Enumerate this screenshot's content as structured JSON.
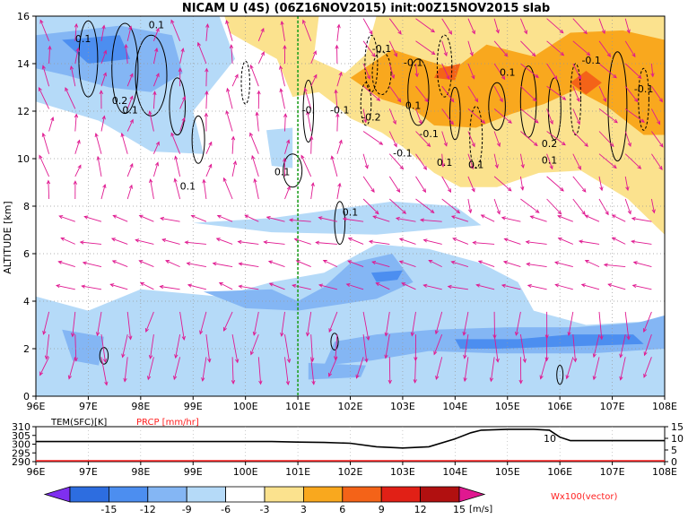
{
  "chart_data": [
    {
      "type": "heatmap",
      "title": "NICAM U (4S) (06Z16NOV2015) init:00Z15NOV2015 slab",
      "ylabel": "ALTITUDE [km]",
      "xlim": [
        96,
        108
      ],
      "ylim": [
        0,
        16
      ],
      "x_ticks": [
        "96E",
        "97E",
        "98E",
        "99E",
        "100E",
        "101E",
        "102E",
        "103E",
        "104E",
        "105E",
        "106E",
        "107E",
        "108E"
      ],
      "y_ticks": [
        "0",
        "2",
        "4",
        "6",
        "8",
        "10",
        "12",
        "14",
        "16"
      ],
      "grid": true,
      "marker_line_x": 101,
      "contour_labels": [
        {
          "text": "0.1",
          "x": 96.9,
          "y": 14.9
        },
        {
          "text": "0.1",
          "x": 98.3,
          "y": 15.5
        },
        {
          "text": "0.2",
          "x": 97.6,
          "y": 12.3
        },
        {
          "text": "0.1",
          "x": 97.8,
          "y": 11.9
        },
        {
          "text": "0.1",
          "x": 98.9,
          "y": 8.7
        },
        {
          "text": "0.1",
          "x": 100.7,
          "y": 9.3
        },
        {
          "text": "-0.",
          "x": 101.2,
          "y": 11.9
        },
        {
          "text": "-0.1",
          "x": 101.8,
          "y": 11.9
        },
        {
          "text": "-0.2",
          "x": 102.4,
          "y": 11.6
        },
        {
          "text": "-0.1",
          "x": 102.6,
          "y": 14.5
        },
        {
          "text": "-0.1",
          "x": 103.2,
          "y": 13.9
        },
        {
          "text": "0.1",
          "x": 103.2,
          "y": 12.1
        },
        {
          "text": "-0.1",
          "x": 103.5,
          "y": 10.9
        },
        {
          "text": "-0.1",
          "x": 103.0,
          "y": 10.1
        },
        {
          "text": "0.1",
          "x": 103.8,
          "y": 9.7
        },
        {
          "text": "0.1",
          "x": 104.4,
          "y": 9.6
        },
        {
          "text": "0.1",
          "x": 105.0,
          "y": 13.5
        },
        {
          "text": "0.2",
          "x": 105.8,
          "y": 10.5
        },
        {
          "text": "0.1",
          "x": 105.8,
          "y": 9.8
        },
        {
          "text": "-0.1",
          "x": 106.6,
          "y": 14.0
        },
        {
          "text": "-0.1",
          "x": 107.6,
          "y": 12.8
        },
        {
          "text": "0.1",
          "x": 102.0,
          "y": 7.6
        }
      ],
      "vector_label": "Wx100(vector)",
      "colors": {
        "neg15": "#7f2ff0",
        "neg12": "#2d6de0",
        "neg9": "#4c8ef0",
        "neg6": "#84b6f4",
        "neg3": "#b5daf8",
        "zero": "#ffffff",
        "pos3": "#fbe28e",
        "pos6": "#f9a81e",
        "pos9": "#f46318",
        "pos12": "#e12016",
        "pos15": "#b11010",
        "vector": "#e01890",
        "marker": "#22a022"
      }
    },
    {
      "type": "line",
      "legend": [
        {
          "label": "TEM(SFC)[K]",
          "color": "#000000"
        },
        {
          "label": "PRCP [mm/hr]",
          "color": "#ff2020"
        }
      ],
      "xlim": [
        96,
        108
      ],
      "y_left_ticks": [
        "310",
        "305",
        "300",
        "295",
        "290"
      ],
      "y_left_range": [
        290,
        310
      ],
      "y_right_ticks": [
        "15",
        "10",
        "5",
        "0"
      ],
      "y_right_range": [
        0,
        15
      ],
      "annotation": "10",
      "series": [
        {
          "name": "TEM(SFC)[K]",
          "x": [
            96,
            97,
            98,
            99,
            100,
            100.5,
            101,
            101.5,
            102,
            102.5,
            103,
            103.5,
            104,
            104.3,
            104.5,
            105,
            105.5,
            105.8,
            106,
            106.2,
            106.5,
            107,
            108
          ],
          "y": [
            301.5,
            301.5,
            301.5,
            301.5,
            301.5,
            301.5,
            301.2,
            301,
            300.5,
            298.5,
            297.8,
            298.5,
            303,
            306.5,
            308,
            308.5,
            308.5,
            308,
            304,
            302,
            302,
            302,
            302
          ]
        },
        {
          "name": "PRCP [mm/hr]",
          "x": [
            96,
            108
          ],
          "y": [
            0,
            0
          ]
        }
      ]
    }
  ],
  "colorbar": {
    "labels": [
      "-15",
      "-12",
      "-9",
      "-6",
      "-3",
      "3",
      "6",
      "9",
      "12",
      "15"
    ],
    "units": "[m/s]",
    "colors": [
      "#7f2ff0",
      "#2d6de0",
      "#4c8ef0",
      "#84b6f4",
      "#b5daf8",
      "#ffffff",
      "#fbe28e",
      "#f9a81e",
      "#f46318",
      "#e12016",
      "#b11010",
      "#e01890"
    ]
  }
}
